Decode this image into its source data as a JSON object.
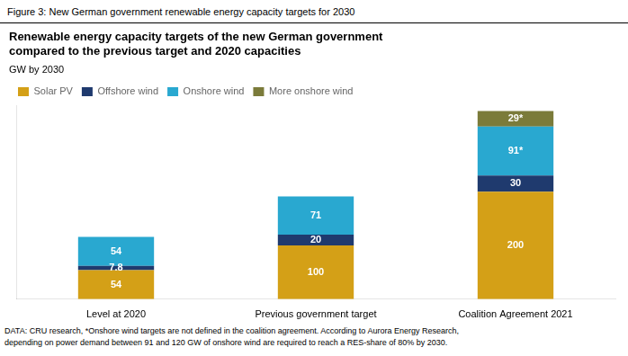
{
  "chart_data": {
    "type": "bar",
    "stacked": true,
    "title": "Renewable energy capacity targets of the new German government\ncompared to the previous target and 2020 capacities",
    "subtitle": "GW by 2030",
    "annotations": [
      "Figure 3: New German government renewable energy capacity targets for 2030",
      "DATA: CRU research, *Onshore wind targets are not defined in the coalition agreement. According to Aurora Energy Research,\ndepending on power demand between 91 and 120 GW of onshore wind are required to reach a RES-share of 80% by 2030."
    ],
    "categories": [
      "Level at 2020",
      "Previous government target",
      "Coalition Agreement 2021"
    ],
    "series": [
      {
        "name": "Solar PV",
        "color": "#D4A017",
        "values": [
          54,
          100,
          200
        ]
      },
      {
        "name": "Offshore wind",
        "color": "#1F3A6E",
        "values": [
          7.8,
          20,
          30
        ]
      },
      {
        "name": "Onshore wind",
        "color": "#29A8D0",
        "values": [
          54,
          71,
          91
        ],
        "value_labels": [
          "54",
          "71",
          "91*"
        ]
      },
      {
        "name": "More onshore wind",
        "color": "#7B7B3A",
        "values": [
          0,
          0,
          29
        ],
        "value_labels": [
          null,
          null,
          "29*"
        ]
      }
    ],
    "ylim": [
      0,
      360
    ],
    "data_labels": true,
    "tick_labels": "x",
    "grid": false,
    "legend": "upper left"
  }
}
